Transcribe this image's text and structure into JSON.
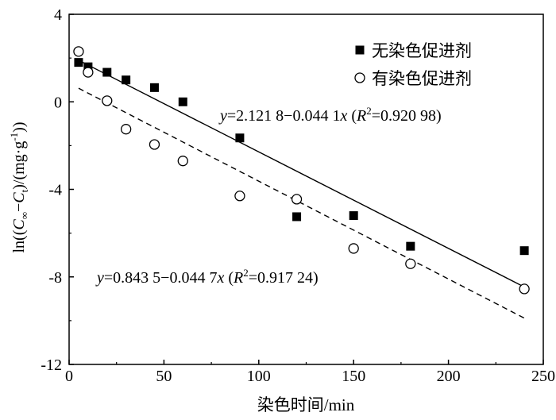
{
  "chart_data": {
    "type": "scatter",
    "xlabel": "染色时间/min",
    "ylabel_parts": {
      "prefix": "ln((",
      "c_inf": "C",
      "inf_sub": "∞",
      "minus": "−",
      "c_t": "C",
      "t_sub": "t",
      "suffix": ")/(mg·g",
      "sup": "-1",
      "end": "))"
    },
    "xlim": [
      0,
      250
    ],
    "ylim": [
      -12,
      4
    ],
    "xticks": [
      0,
      50,
      100,
      150,
      200,
      250
    ],
    "yticks": [
      4,
      0,
      -4,
      -8,
      -12
    ],
    "legend_position": "top-right",
    "series": [
      {
        "name": "无染色促进剂",
        "marker": "filled-square",
        "x": [
          5,
          10,
          20,
          30,
          45,
          60,
          90,
          120,
          150,
          180,
          240
        ],
        "y": [
          1.8,
          1.6,
          1.35,
          1.0,
          0.65,
          0.0,
          -1.65,
          -5.25,
          -5.2,
          -6.6,
          -6.8
        ],
        "fit": {
          "intercept": 2.1218,
          "slope": -0.0441,
          "x_range": [
            5,
            240
          ],
          "style": "solid"
        },
        "equation": {
          "y": "y",
          "eq": "=2.121 8−0.044 1",
          "x": "x",
          "open": " (",
          "r": "R",
          "sup": "2",
          "val": "=0.920 98)"
        }
      },
      {
        "name": "有染色促进剂",
        "marker": "open-circle",
        "x": [
          5,
          10,
          20,
          30,
          45,
          60,
          90,
          120,
          150,
          180,
          240
        ],
        "y": [
          2.3,
          1.35,
          0.05,
          -1.25,
          -1.95,
          -2.7,
          -4.3,
          -4.45,
          -6.7,
          -7.4,
          -8.55
        ],
        "fit": {
          "intercept": 0.8435,
          "slope": -0.0447,
          "x_range": [
            5,
            240
          ],
          "style": "dashed"
        },
        "equation": {
          "y": "y",
          "eq": "=0.843 5−0.044 7",
          "x": "x",
          "open": " (",
          "r": "R",
          "sup": "2",
          "val": "=0.917 24)"
        }
      }
    ]
  }
}
